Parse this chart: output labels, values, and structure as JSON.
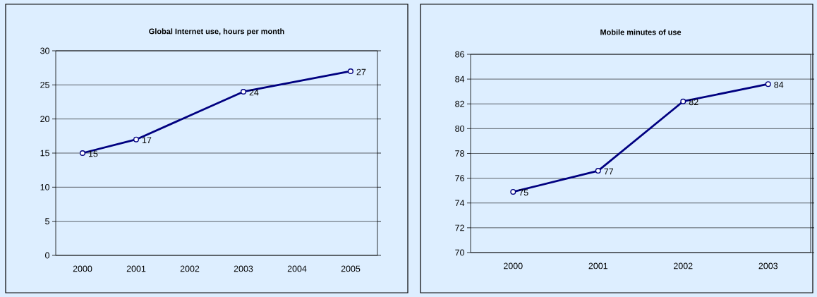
{
  "chart_data": [
    {
      "type": "line",
      "title": "Global Internet use, hours per month",
      "x": [
        2000,
        2001,
        2003,
        2005
      ],
      "xlim": [
        1999.5,
        2005.5
      ],
      "xticks": [
        2000,
        2001,
        2002,
        2003,
        2004,
        2005
      ],
      "ylim": [
        0,
        30
      ],
      "yticks": [
        0,
        5,
        10,
        15,
        20,
        25,
        30
      ],
      "series": [
        {
          "color": "#000080",
          "values": [
            15,
            17,
            24,
            27
          ],
          "value_labels": [
            "15",
            "17",
            "24",
            "27"
          ]
        }
      ],
      "grid": "y",
      "marker": "circle",
      "line_style": "solid"
    },
    {
      "type": "line",
      "title": "Mobile minutes of use",
      "categories": [
        "2000",
        "2001",
        "2002",
        "2003"
      ],
      "ylim": [
        70,
        86
      ],
      "yticks": [
        70,
        72,
        74,
        76,
        78,
        80,
        82,
        84,
        86
      ],
      "series": [
        {
          "color": "#000080",
          "values": [
            74.9,
            76.6,
            82.2,
            83.6
          ],
          "value_labels": [
            "75",
            "77",
            "82",
            "84"
          ]
        }
      ],
      "grid": "y",
      "marker": "circle",
      "line_style": "solid"
    }
  ]
}
